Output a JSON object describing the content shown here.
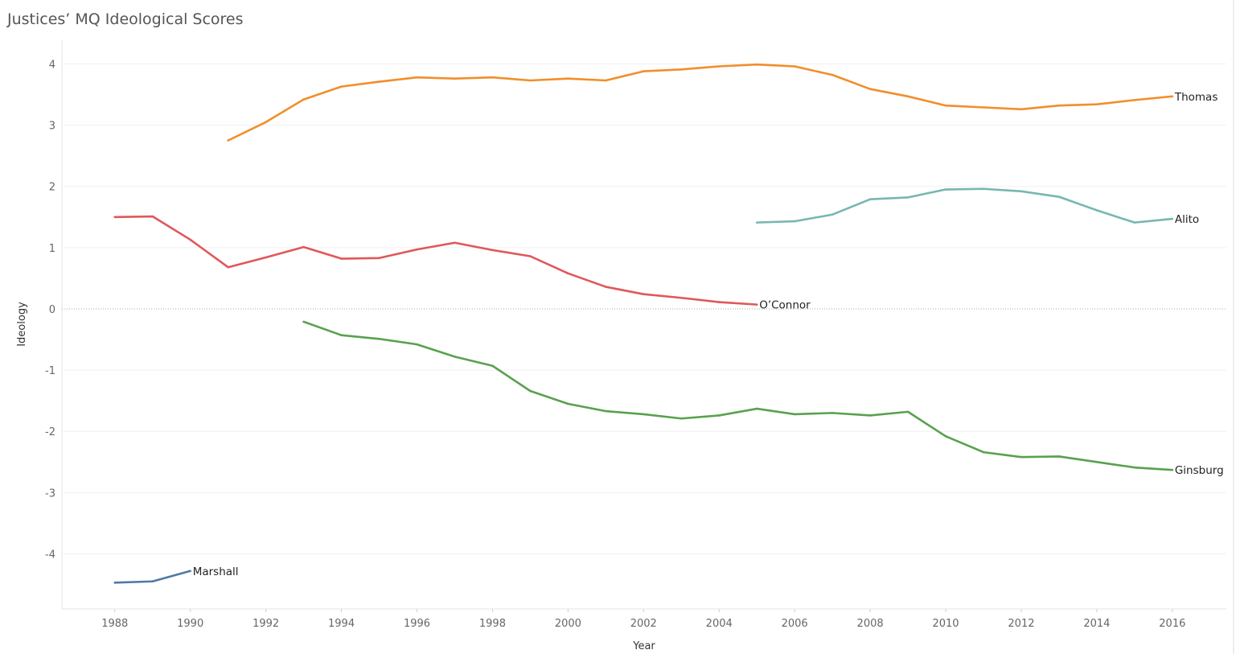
{
  "chart_data": {
    "type": "line",
    "title": "Justices’ MQ Ideological Scores",
    "xlabel": "Year",
    "ylabel": "Ideology",
    "xlim": [
      1986.6,
      2017.43
    ],
    "ylim": [
      -4.9,
      4.4
    ],
    "xticks": [
      1988,
      1990,
      1992,
      1994,
      1996,
      1998,
      2000,
      2002,
      2004,
      2006,
      2008,
      2010,
      2012,
      2014,
      2016
    ],
    "yticks": [
      4,
      3,
      2,
      1,
      0,
      -1,
      -2,
      -3,
      -4
    ],
    "grid": true,
    "legend": "none (direct labels at line ends)",
    "series": [
      {
        "name": "Thomas",
        "color": "#f28e2b",
        "x": [
          1991,
          1992,
          1993,
          1994,
          1995,
          1996,
          1997,
          1998,
          1999,
          2000,
          2001,
          2002,
          2003,
          2004,
          2005,
          2006,
          2007,
          2008,
          2009,
          2010,
          2011,
          2012,
          2013,
          2014,
          2015,
          2016
        ],
        "y": [
          2.75,
          3.05,
          3.42,
          3.63,
          3.71,
          3.78,
          3.76,
          3.78,
          3.73,
          3.76,
          3.73,
          3.88,
          3.91,
          3.96,
          3.99,
          3.96,
          3.82,
          3.59,
          3.47,
          3.32,
          3.29,
          3.26,
          3.32,
          3.34,
          3.41,
          3.47
        ]
      },
      {
        "name": "Alito",
        "color": "#76b7b2",
        "x": [
          2005,
          2006,
          2007,
          2008,
          2009,
          2010,
          2011,
          2012,
          2013,
          2014,
          2015,
          2016
        ],
        "y": [
          1.41,
          1.43,
          1.54,
          1.79,
          1.82,
          1.95,
          1.96,
          1.92,
          1.83,
          1.61,
          1.41,
          1.47
        ]
      },
      {
        "name": "O’Connor",
        "color": "#e15759",
        "x": [
          1988,
          1989,
          1990,
          1991,
          1992,
          1993,
          1994,
          1995,
          1996,
          1997,
          1998,
          1999,
          2000,
          2001,
          2002,
          2003,
          2004,
          2005
        ],
        "y": [
          1.5,
          1.51,
          1.13,
          0.68,
          0.84,
          1.01,
          0.82,
          0.83,
          0.97,
          1.08,
          0.96,
          0.86,
          0.58,
          0.36,
          0.24,
          0.18,
          0.11,
          0.07
        ]
      },
      {
        "name": "Ginsburg",
        "color": "#59a14f",
        "x": [
          1993,
          1994,
          1995,
          1996,
          1997,
          1998,
          1999,
          2000,
          2001,
          2002,
          2003,
          2004,
          2005,
          2006,
          2007,
          2008,
          2009,
          2010,
          2011,
          2012,
          2013,
          2014,
          2015,
          2016
        ],
        "y": [
          -0.21,
          -0.43,
          -0.49,
          -0.58,
          -0.78,
          -0.93,
          -1.34,
          -1.55,
          -1.67,
          -1.72,
          -1.79,
          -1.74,
          -1.63,
          -1.72,
          -1.7,
          -1.74,
          -1.68,
          -2.08,
          -2.34,
          -2.42,
          -2.41,
          -2.5,
          -2.59,
          -2.63
        ]
      },
      {
        "name": "Marshall",
        "color": "#4e79a7",
        "x": [
          1988,
          1989,
          1990
        ],
        "y": [
          -4.47,
          -4.45,
          -4.28
        ]
      }
    ]
  }
}
